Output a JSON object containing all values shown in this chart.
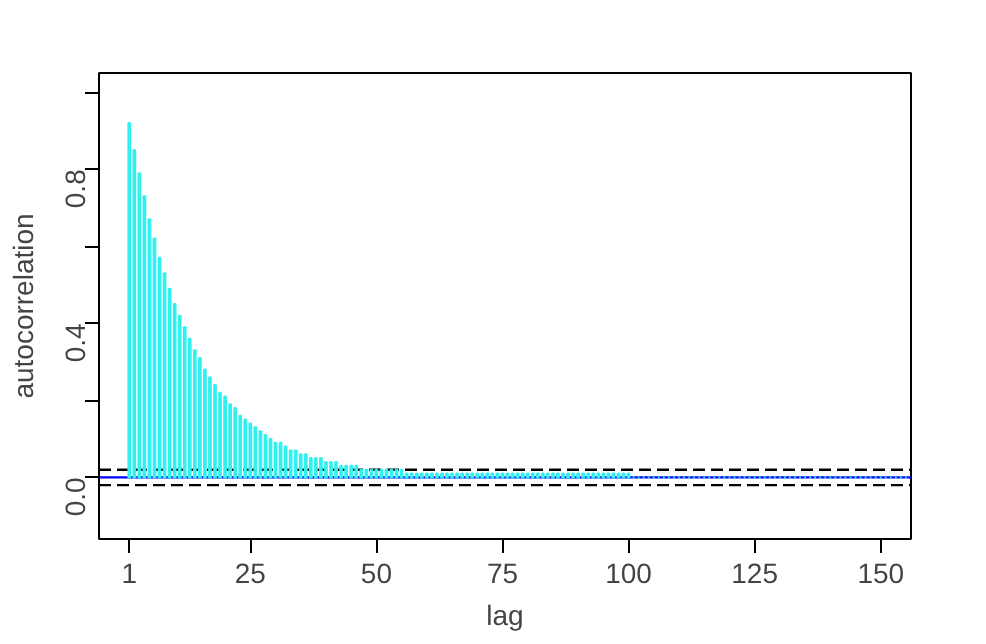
{
  "chart_data": {
    "type": "bar",
    "xlabel": "lag",
    "ylabel": "autocorrelation",
    "x": [
      1,
      2,
      3,
      4,
      5,
      6,
      7,
      8,
      9,
      10,
      11,
      12,
      13,
      14,
      15,
      16,
      17,
      18,
      19,
      20,
      21,
      22,
      23,
      24,
      25,
      26,
      27,
      28,
      29,
      30,
      31,
      32,
      33,
      34,
      35,
      36,
      37,
      38,
      39,
      40,
      41,
      42,
      43,
      44,
      45,
      46,
      47,
      48,
      49,
      50,
      51,
      52,
      53,
      54,
      55,
      56,
      57,
      58,
      59,
      60,
      61,
      62,
      63,
      64,
      65,
      66,
      67,
      68,
      69,
      70,
      71,
      72,
      73,
      74,
      75,
      76,
      77,
      78,
      79,
      80,
      81,
      82,
      83,
      84,
      85,
      86,
      87,
      88,
      89,
      90,
      91,
      92,
      93,
      94,
      95,
      96,
      97,
      98,
      99,
      100,
      101,
      102,
      103,
      104,
      105,
      106,
      107,
      108,
      109,
      110,
      111,
      112,
      113,
      114,
      115,
      116,
      117,
      118,
      119,
      120,
      121,
      122,
      123,
      124,
      125,
      126,
      127,
      128,
      129,
      130,
      131,
      132,
      133,
      134,
      135,
      136,
      137,
      138,
      139,
      140,
      141,
      142,
      143,
      144,
      145,
      146,
      147,
      148,
      149,
      150,
      151,
      152,
      153,
      154,
      155
    ],
    "values": [
      0.92,
      0.85,
      0.79,
      0.73,
      0.67,
      0.62,
      0.57,
      0.53,
      0.49,
      0.45,
      0.42,
      0.39,
      0.36,
      0.33,
      0.31,
      0.28,
      0.26,
      0.24,
      0.22,
      0.21,
      0.19,
      0.18,
      0.16,
      0.15,
      0.14,
      0.13,
      0.12,
      0.11,
      0.1,
      0.09,
      0.09,
      0.08,
      0.07,
      0.07,
      0.06,
      0.06,
      0.05,
      0.05,
      0.05,
      0.04,
      0.04,
      0.04,
      0.03,
      0.03,
      0.03,
      0.03,
      0.02,
      0.02,
      0.02,
      0.02,
      0.02,
      0.02,
      0.02,
      0.02,
      0.02,
      0.01,
      0.01,
      0.01,
      0.01,
      0.01,
      0.01,
      0.01,
      0.01,
      0.01,
      0.01,
      0.01,
      0.01,
      0.01,
      0.01,
      0.01,
      0.01,
      0.01,
      0.01,
      0.01,
      0.01,
      0.01,
      0.01,
      0.01,
      0.01,
      0.01,
      0.01,
      0.01,
      0.01,
      0.01,
      0.01,
      0.01,
      0.01,
      0.01,
      0.01,
      0.01,
      0.01,
      0.01,
      0.01,
      0.01,
      0.01,
      0.01,
      0.01,
      0.01,
      0.01,
      0.01,
      0.0,
      0.0,
      0.0,
      0.0,
      0.0,
      0.0,
      0.0,
      0.0,
      0.0,
      0.0,
      0.0,
      0.0,
      0.0,
      0.0,
      0.0,
      0.0,
      0.0,
      0.0,
      0.0,
      0.0,
      0.0,
      0.0,
      0.0,
      0.0,
      0.0,
      0.0,
      0.0,
      0.0,
      0.0,
      0.0,
      0.0,
      0.0,
      0.0,
      0.0,
      0.0,
      0.0,
      0.0,
      0.0,
      0.0,
      0.0,
      0.0,
      0.0,
      0.0,
      0.0,
      0.0,
      0.0,
      0.0,
      0.0,
      0.0,
      0.0,
      0.0,
      0.0,
      0.0,
      0.0,
      0.0
    ],
    "color": "#33f0f0",
    "xlim": [
      -5,
      156
    ],
    "xticks": [
      1,
      25,
      50,
      75,
      100,
      125,
      150
    ],
    "ylim": [
      -0.16,
      1.05
    ],
    "yticks": [
      {
        "value": 0.0,
        "label": "0.0"
      },
      {
        "value": 0.2,
        "label": null
      },
      {
        "value": 0.4,
        "label": "0.4"
      },
      {
        "value": 0.6,
        "label": null
      },
      {
        "value": 0.8,
        "label": "0.8"
      },
      {
        "value": 1.0,
        "label": null
      }
    ],
    "grid": false,
    "ref_lines": [
      {
        "axis": "y",
        "value": 0.02,
        "color": "#000000",
        "line_style": "dashed"
      },
      {
        "axis": "y",
        "value": -0.02,
        "color": "#000000",
        "line_style": "dashed"
      },
      {
        "axis": "y",
        "value": 0,
        "color": "#0000ff",
        "line_style": "solid"
      }
    ]
  }
}
